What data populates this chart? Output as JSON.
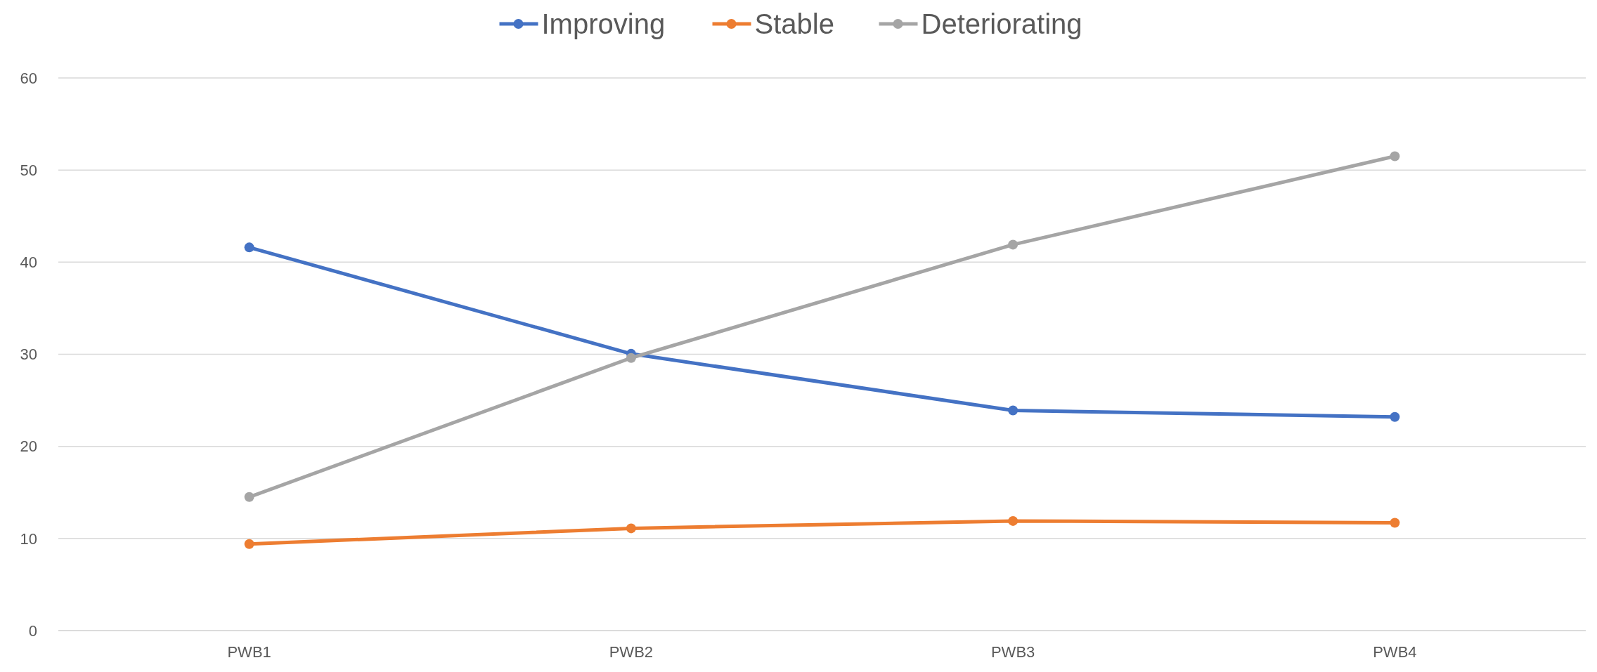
{
  "chart_data": {
    "type": "line",
    "categories": [
      "PWB1",
      "PWB2",
      "PWB3",
      "PWB4"
    ],
    "series": [
      {
        "name": "Improving",
        "color": "#4472c4",
        "values": [
          41.6,
          30.05,
          23.9,
          23.2
        ]
      },
      {
        "name": "Stable",
        "color": "#ed7d31",
        "values": [
          9.4,
          11.1,
          11.9,
          11.7
        ]
      },
      {
        "name": "Deteriorating",
        "color": "#a5a5a5",
        "values": [
          14.5,
          29.6,
          41.9,
          51.5
        ]
      }
    ],
    "ylim": [
      0,
      60
    ],
    "yticks": [
      0,
      10,
      20,
      30,
      40,
      50,
      60
    ],
    "grid": "y",
    "legend": "top",
    "marker": "circle",
    "line_style": "solid"
  }
}
